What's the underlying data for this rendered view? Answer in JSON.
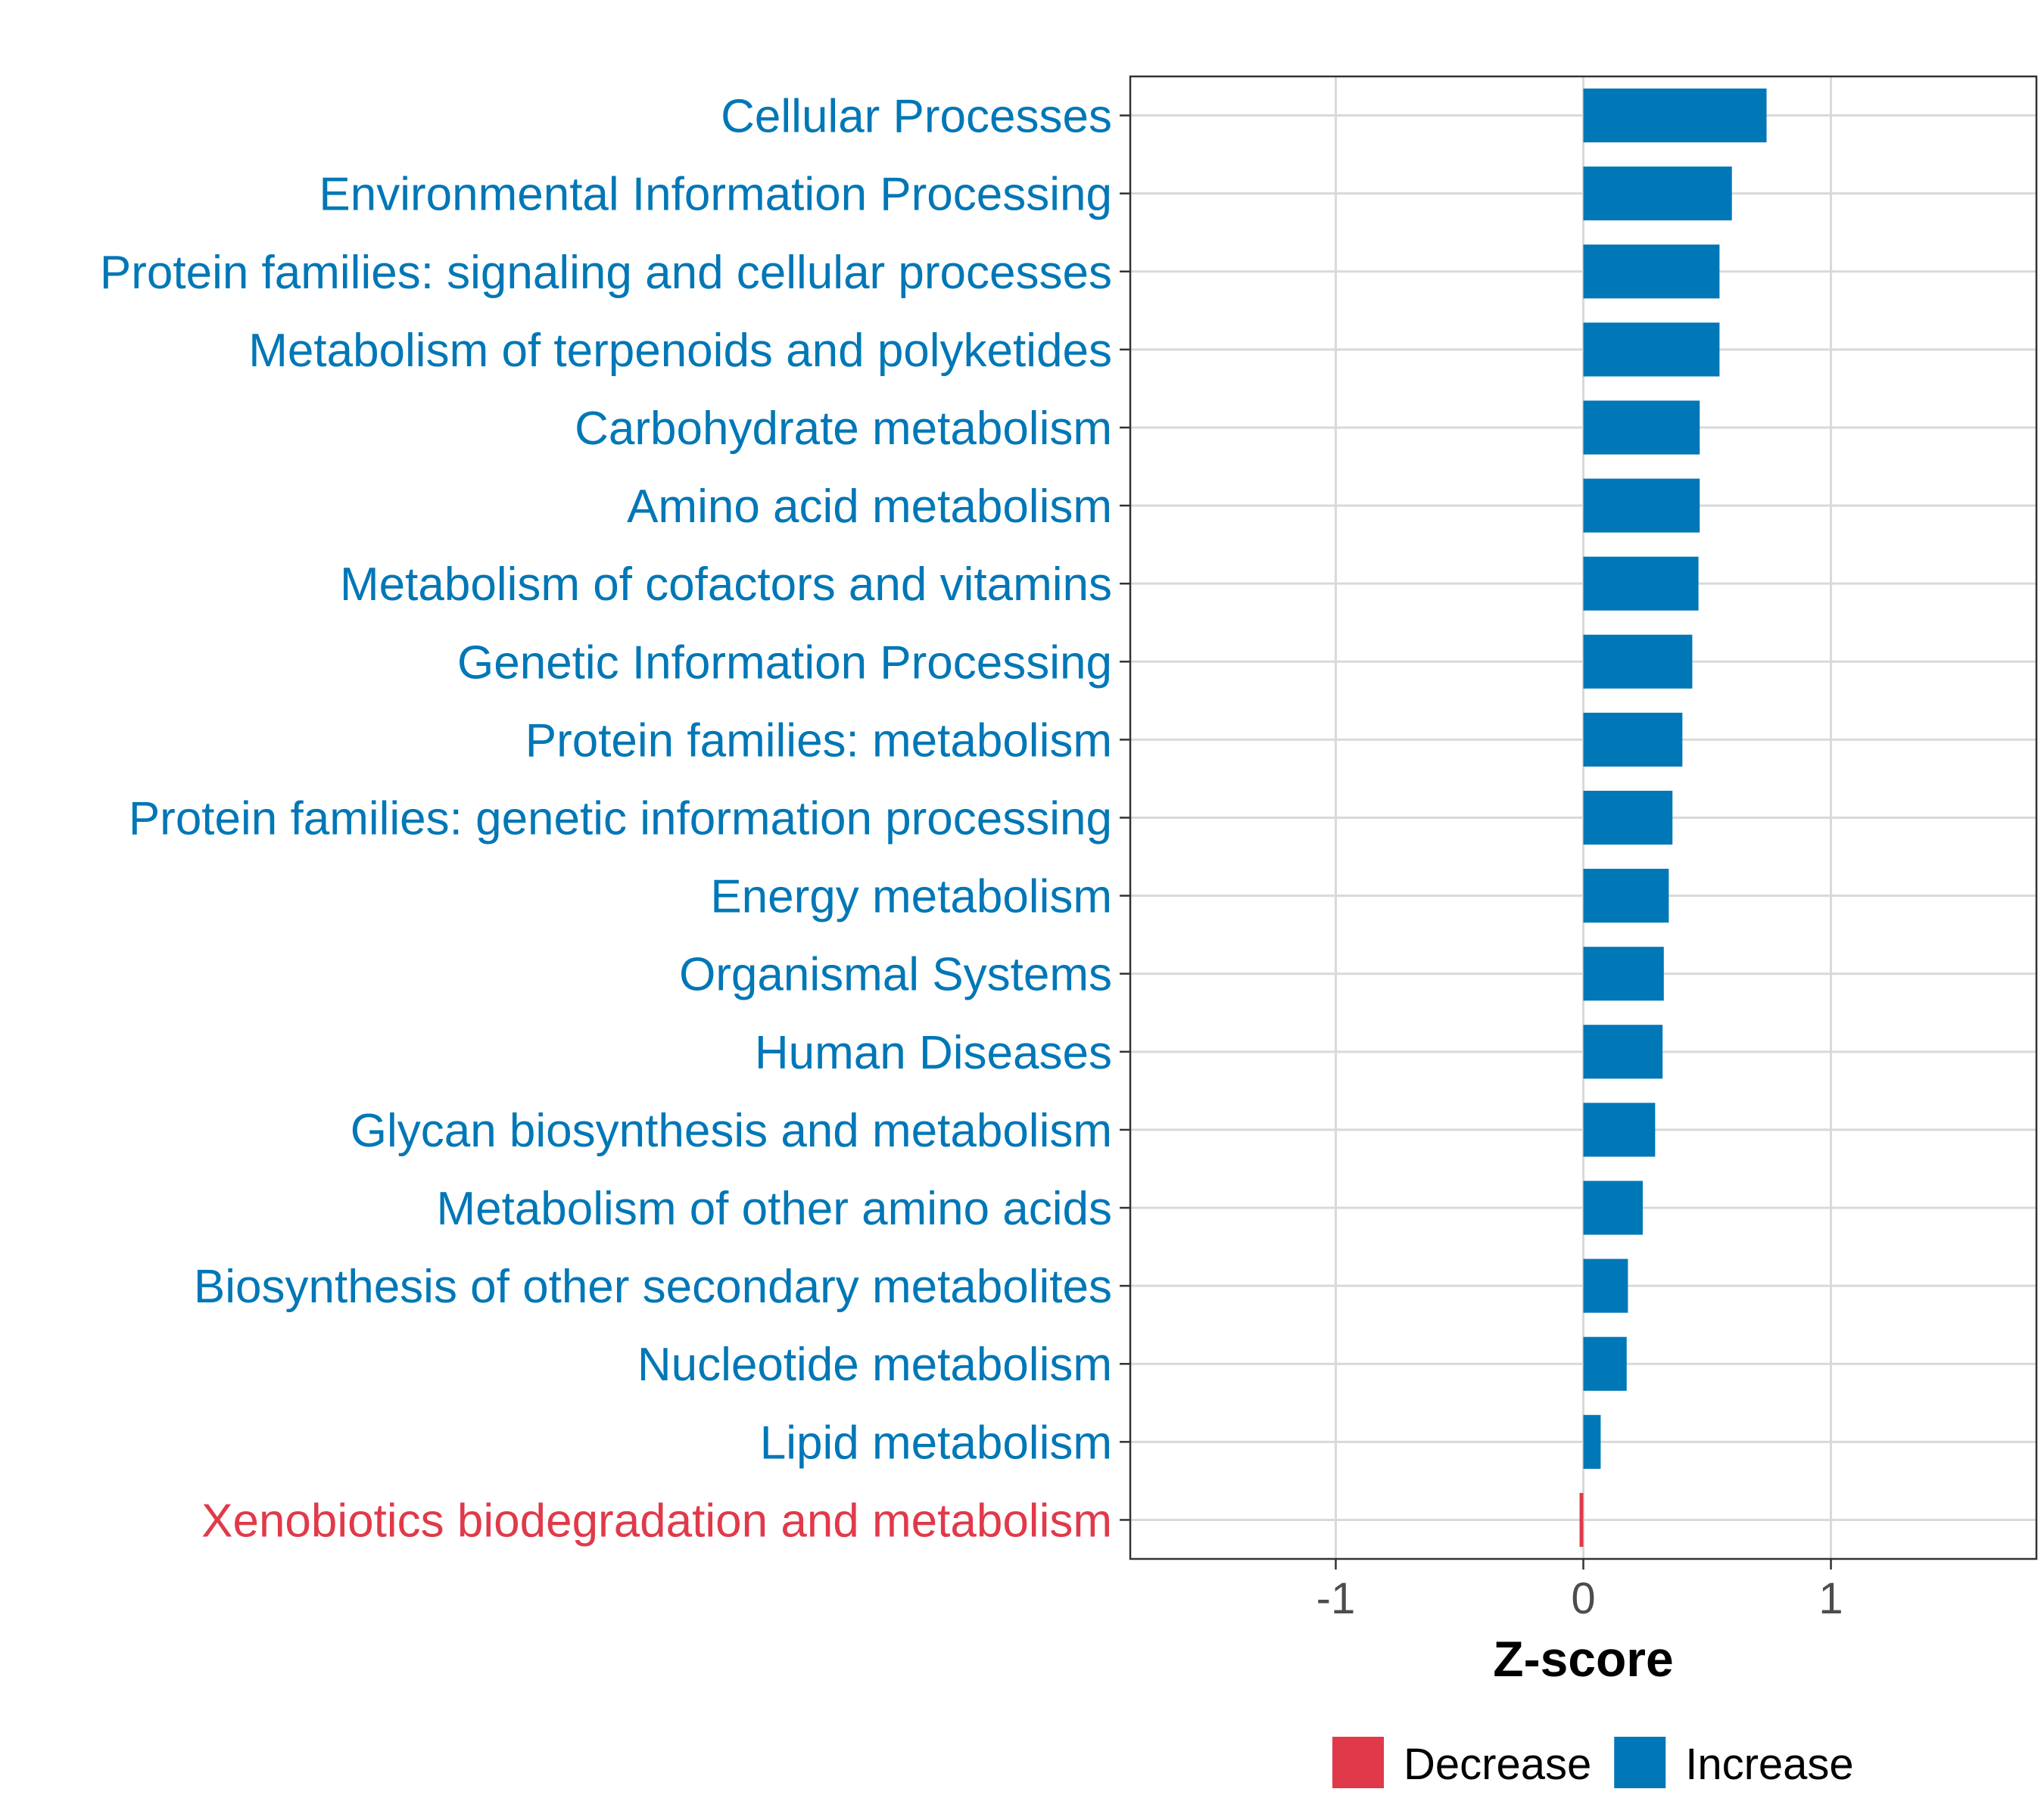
{
  "chart_data": {
    "type": "bar",
    "orientation": "horizontal",
    "title": "",
    "xlabel": "Z-score",
    "ylabel": "",
    "xlim": [
      -1.83,
      1.83
    ],
    "xticks": [
      -1,
      0,
      1
    ],
    "xtick_labels": [
      "-1",
      "0",
      "1"
    ],
    "grid": true,
    "legend_position": "bottom",
    "legend": [
      {
        "name": "Decrease",
        "color": "#E03A4A"
      },
      {
        "name": "Increase",
        "color": "#0077B6"
      }
    ],
    "categories": [
      "Cellular Processes",
      "Environmental Information Processing",
      "Protein families: signaling and cellular processes",
      "Metabolism of terpenoids and polyketides",
      "Carbohydrate metabolism",
      "Amino acid metabolism",
      "Metabolism of cofactors and vitamins",
      "Genetic Information Processing",
      "Protein families: metabolism",
      "Protein families: genetic information processing",
      "Energy metabolism",
      "Organismal Systems",
      "Human Diseases",
      "Glycan biosynthesis and metabolism",
      "Metabolism of other amino acids",
      "Biosynthesis of other secondary metabolites",
      "Nucleotide metabolism",
      "Lipid metabolism",
      "Xenobiotics biodegradation and metabolism"
    ],
    "values": [
      0.74,
      0.6,
      0.55,
      0.55,
      0.47,
      0.47,
      0.465,
      0.44,
      0.4,
      0.36,
      0.345,
      0.325,
      0.32,
      0.29,
      0.24,
      0.18,
      0.175,
      0.07,
      -0.01
    ],
    "groups": [
      "Increase",
      "Increase",
      "Increase",
      "Increase",
      "Increase",
      "Increase",
      "Increase",
      "Increase",
      "Increase",
      "Increase",
      "Increase",
      "Increase",
      "Increase",
      "Increase",
      "Increase",
      "Increase",
      "Increase",
      "Increase",
      "Decrease"
    ]
  }
}
